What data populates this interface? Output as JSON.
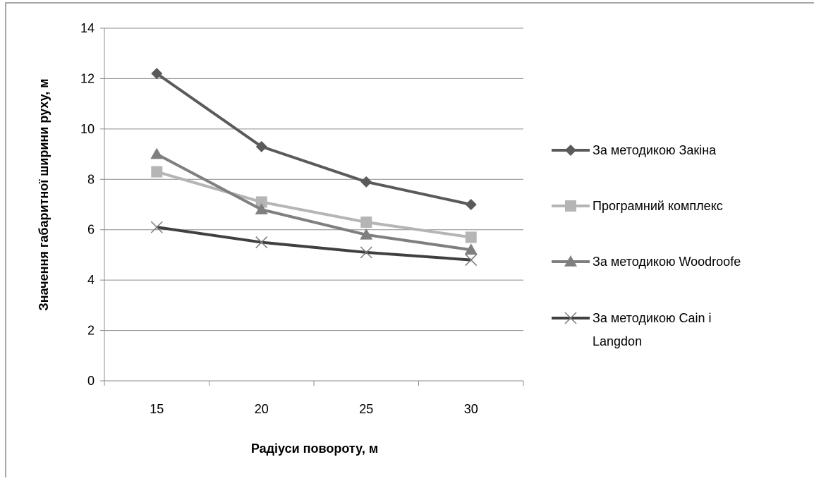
{
  "chart_data": {
    "type": "line",
    "categories": [
      "15",
      "20",
      "25",
      "30"
    ],
    "xlabel": "Радіуси повороту,  м",
    "ylabel": "Значення габаритної ширини руху, м",
    "ylim": [
      0,
      14
    ],
    "yticks": [
      "0",
      "2",
      "4",
      "6",
      "8",
      "10",
      "12",
      "14"
    ],
    "grid": true,
    "legend_position": "right",
    "series": [
      {
        "name": "За методикою Закіна",
        "values": [
          12.2,
          9.3,
          7.9,
          7.0
        ],
        "color": "#5a5a5a",
        "marker": "diamond"
      },
      {
        "name": "Програмний комплекс",
        "values": [
          8.3,
          7.1,
          6.3,
          5.7
        ],
        "color": "#b5b5b5",
        "marker": "square"
      },
      {
        "name": "За методикою Woodroofe",
        "values": [
          9.0,
          6.8,
          5.8,
          5.2
        ],
        "color": "#7f7f7f",
        "marker": "triangle"
      },
      {
        "name": "За  методикою Cain і Langdon",
        "name_lines": [
          "За  методикою Cain і",
          "Langdon"
        ],
        "values": [
          6.1,
          5.5,
          5.1,
          4.8
        ],
        "color": "#404040",
        "marker": "x"
      }
    ]
  }
}
